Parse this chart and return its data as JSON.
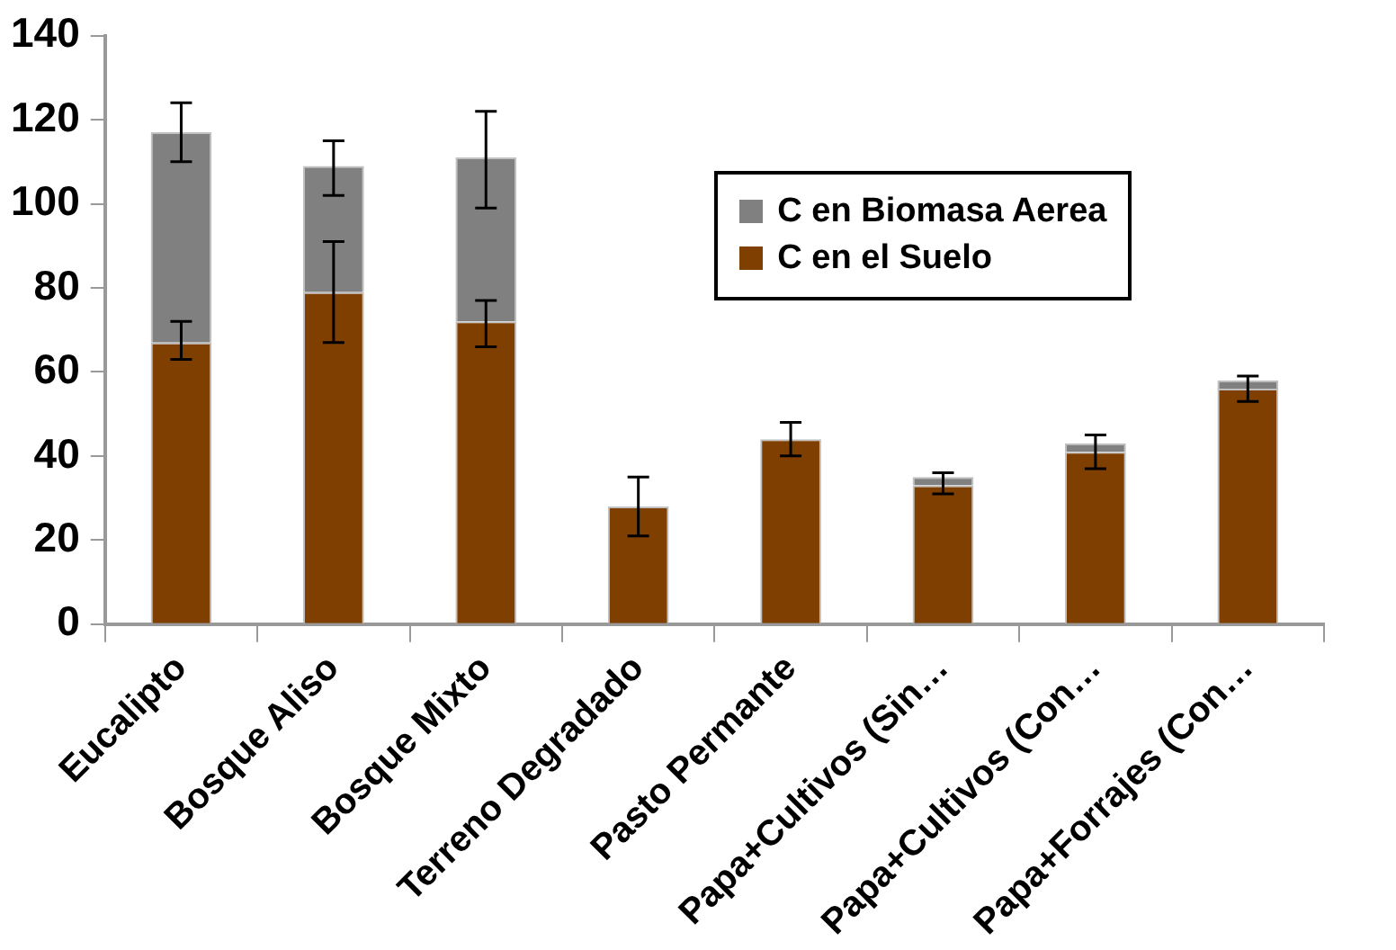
{
  "chart_data": {
    "type": "bar",
    "stacked": true,
    "categories": [
      "Eucalipto",
      "Bosque Aliso",
      "Bosque Mixto",
      "Terreno Degradado",
      "Pasto Permante",
      "Papa+Cultivos (Sin…",
      "Papa+Cultivos (Con…",
      "Papa+Forrajes (Con…"
    ],
    "series": [
      {
        "name": "C en el Suelo",
        "color": "#7f3f00",
        "values": [
          67,
          79,
          72,
          28,
          44,
          33,
          41,
          56
        ],
        "errors": [
          [
            63,
            72
          ],
          [
            67,
            91
          ],
          [
            66,
            77
          ],
          [
            21,
            35
          ],
          [
            40,
            48
          ],
          [
            31,
            36
          ],
          [
            37,
            45
          ],
          [
            53,
            59
          ]
        ]
      },
      {
        "name": "C en Biomasa Aerea",
        "color": "#808080",
        "values": [
          50,
          30,
          39,
          null,
          null,
          2,
          2,
          2
        ],
        "errors": [
          [
            110,
            124
          ],
          [
            102,
            115
          ],
          [
            99,
            122
          ],
          null,
          null,
          null,
          null,
          null
        ]
      }
    ],
    "ylim": [
      0,
      140
    ],
    "yticks": [
      0,
      20,
      40,
      60,
      80,
      100,
      120,
      140
    ],
    "grid": false,
    "legend": "top right"
  }
}
